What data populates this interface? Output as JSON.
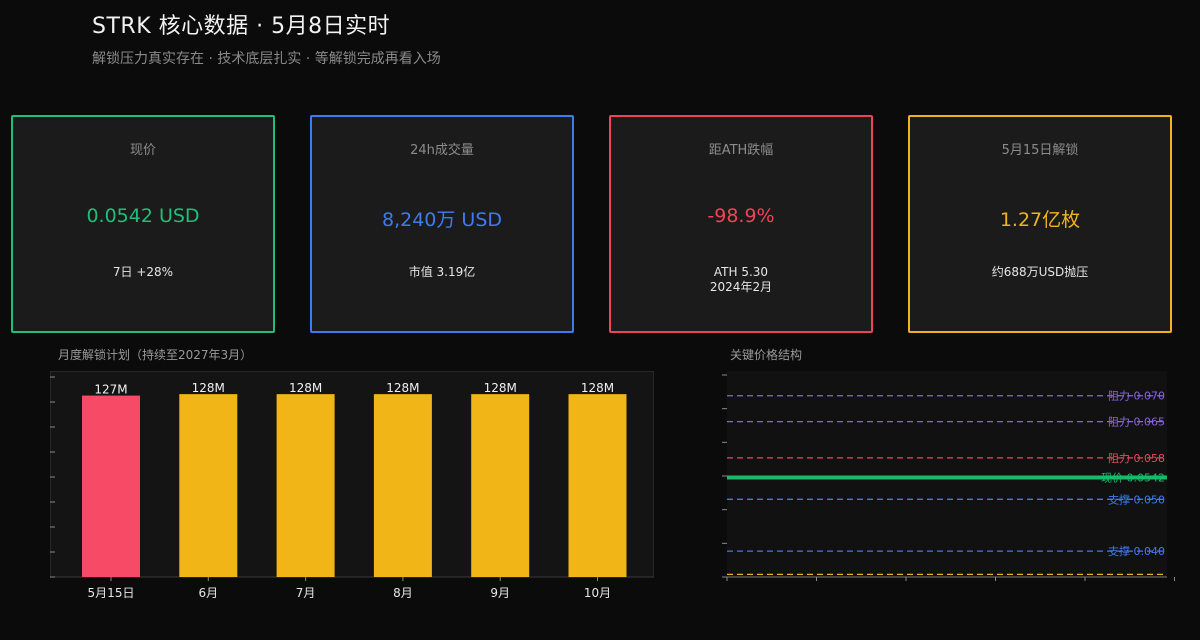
{
  "header": {
    "title": "STRK 核心数据 · 5月8日实时",
    "subtitle": "解锁压力真实存在 · 技术底层扎实 · 等解锁完成再看入场"
  },
  "cards": [
    {
      "label": "现价",
      "value": "0.0542 USD",
      "sub1": "7日 +28%",
      "sub2": "",
      "color": "#1fbf78"
    },
    {
      "label": "24h成交量",
      "value": "8,240万 USD",
      "sub1": "市值 3.19亿",
      "sub2": "",
      "color": "#3d7cf0"
    },
    {
      "label": "距ATH跌幅",
      "value": "-98.9%",
      "sub1": "ATH 5.30",
      "sub2": "2024年2月",
      "color": "#ee4456"
    },
    {
      "label": "5月15日解锁",
      "value": "1.27亿枚",
      "sub1": "约688万USD抛压",
      "sub2": "",
      "color": "#f0b31e"
    }
  ],
  "chart_data": [
    {
      "type": "bar",
      "title": "月度解锁计划（持续至2027年3月）",
      "categories": [
        "5月15日",
        "6月",
        "7月",
        "8月",
        "9月",
        "10月"
      ],
      "values": [
        127,
        128,
        128,
        128,
        128,
        128
      ],
      "value_labels": [
        "127M",
        "128M",
        "128M",
        "128M",
        "128M",
        "128M"
      ],
      "colors": [
        "#f64a66",
        "#f2b517",
        "#f2b517",
        "#f2b517",
        "#f2b517",
        "#f2b517"
      ],
      "ylim": [
        0,
        140
      ],
      "grid": false
    },
    {
      "type": "line",
      "title": "关键价格结构",
      "ylim": [
        0.035,
        0.074
      ],
      "levels": [
        {
          "label": "阻力 0.070",
          "value": 0.07,
          "color": "#8a63e6",
          "style": "dashed"
        },
        {
          "label": "阻力 0.065",
          "value": 0.065,
          "color": "#8a63e6",
          "style": "dashed"
        },
        {
          "label": "阻力 0.058",
          "value": 0.058,
          "color": "#e5485e",
          "style": "dashed"
        },
        {
          "label": "现价 0.0542",
          "value": 0.0542,
          "color": "#19b96a",
          "style": "solid"
        },
        {
          "label": "支撑 0.050",
          "value": 0.05,
          "color": "#3d7cf0",
          "style": "dashed"
        },
        {
          "label": "支撑 0.040",
          "value": 0.04,
          "color": "#3d7cf0",
          "style": "dashed"
        },
        {
          "label": "",
          "value": 0.0355,
          "color": "#e3b21e",
          "style": "dashed"
        }
      ]
    }
  ]
}
